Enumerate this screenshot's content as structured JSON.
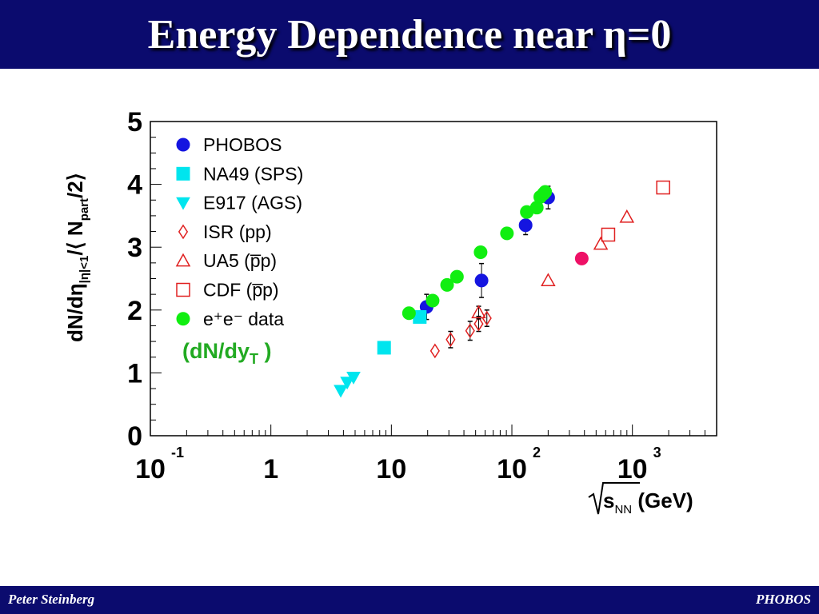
{
  "slide": {
    "title": "Energy Dependence near η=0",
    "footer_left": "Peter Steinberg",
    "footer_right": "PHOBOS"
  },
  "chart_data": {
    "type": "scatter",
    "xscale": "log",
    "xlim": [
      0.1,
      5000
    ],
    "ylim": [
      0,
      5
    ],
    "grid": false,
    "legend_position": "top-left",
    "xlabel_parts": {
      "sqrt": "s",
      "sub": "NN",
      "unit": " (GeV)"
    },
    "ylabel_parts": {
      "main": "dN/dη",
      "sub": "|η|<1",
      "mid": "/⟨ N",
      "sub2": "part",
      "end": "/2⟩"
    },
    "x_ticks": [
      {
        "base": "10",
        "exp": "-1"
      },
      {
        "base": "1",
        "exp": ""
      },
      {
        "base": "10",
        "exp": ""
      },
      {
        "base": "10",
        "exp": "2"
      },
      {
        "base": "10",
        "exp": "3"
      }
    ],
    "y_ticks": [
      "0",
      "1",
      "2",
      "3",
      "4",
      "5"
    ],
    "annotation": {
      "text": "(dN/dy",
      "sub": "T",
      "end": " )",
      "color": "#22aa22"
    },
    "series": [
      {
        "name": "PHOBOS",
        "marker": "circle",
        "filled": true,
        "color": "#1515e0",
        "x": [
          19.6,
          56,
          130,
          200
        ],
        "y": [
          2.05,
          2.47,
          3.35,
          3.79
        ],
        "err": [
          0.2,
          0.27,
          0.15,
          0.18
        ]
      },
      {
        "name": "NA49 (SPS)",
        "marker": "square",
        "filled": true,
        "color": "#00e5ee",
        "x": [
          8.7,
          17.2
        ],
        "y": [
          1.4,
          1.89
        ],
        "err": [
          0,
          0
        ]
      },
      {
        "name": "E917 (AGS)",
        "marker": "triangle-down",
        "filled": true,
        "color": "#00e5ee",
        "x": [
          3.8,
          4.3,
          4.85
        ],
        "y": [
          0.72,
          0.85,
          0.93
        ],
        "err": [
          0,
          0,
          0
        ]
      },
      {
        "name": "ISR (pp)",
        "marker": "diamond",
        "filled": false,
        "color": "#e02020",
        "x": [
          23,
          31,
          45,
          53,
          62
        ],
        "y": [
          1.35,
          1.53,
          1.67,
          1.78,
          1.87
        ],
        "err": [
          0,
          0.13,
          0.15,
          0.12,
          0.13
        ]
      },
      {
        "name": "UA5 (p̅p)",
        "marker": "triangle-up",
        "filled": false,
        "color": "#e02020",
        "x": [
          53,
          200,
          546,
          900
        ],
        "y": [
          1.96,
          2.47,
          3.05,
          3.48
        ],
        "err": [
          0.1,
          0,
          0,
          0
        ]
      },
      {
        "name": "CDF (p̅p)",
        "marker": "square",
        "filled": false,
        "color": "#e02020",
        "x": [
          630,
          1800
        ],
        "y": [
          3.2,
          3.95
        ],
        "err": [
          0,
          0
        ]
      },
      {
        "name": "e⁺e⁻ data",
        "marker": "circle",
        "filled": true,
        "color": "#11ee11",
        "x": [
          14,
          22,
          29,
          35,
          55,
          91,
          133,
          161,
          172,
          183,
          189
        ],
        "y": [
          1.95,
          2.15,
          2.4,
          2.53,
          2.92,
          3.22,
          3.56,
          3.63,
          3.8,
          3.85,
          3.88
        ],
        "err": [
          0,
          0,
          0,
          0,
          0,
          0,
          0,
          0,
          0,
          0,
          0
        ]
      },
      {
        "name": "",
        "marker": "circle",
        "filled": true,
        "color": "#ee1166",
        "x": [
          380
        ],
        "y": [
          2.82
        ],
        "err": [
          0
        ]
      }
    ]
  }
}
